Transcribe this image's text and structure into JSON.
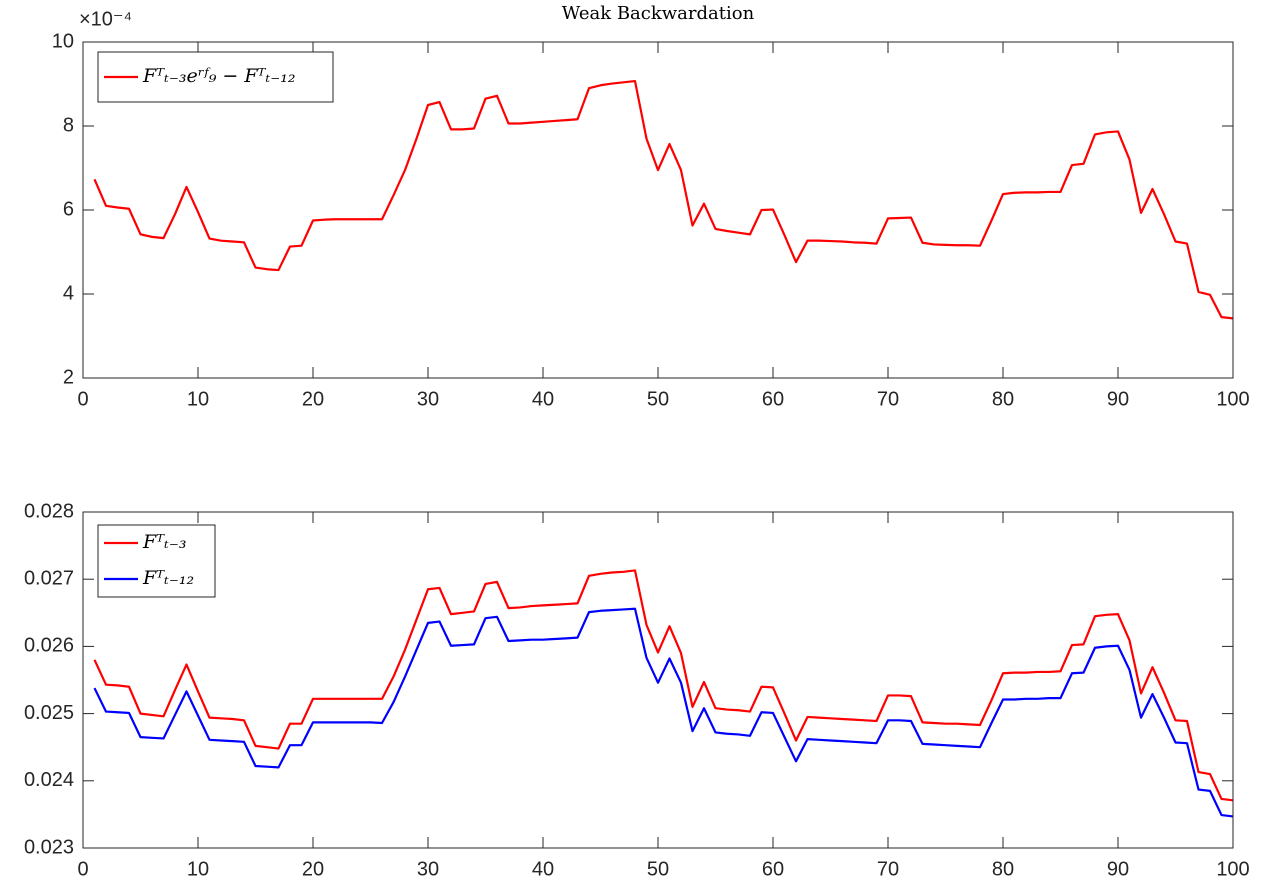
{
  "chart_data": [
    {
      "type": "line",
      "title": "Weak Backwardation",
      "y_scale_label": "×10⁻⁴",
      "x": [
        1,
        2,
        3,
        4,
        5,
        6,
        7,
        8,
        9,
        10,
        11,
        12,
        13,
        14,
        15,
        16,
        17,
        18,
        19,
        20,
        21,
        22,
        23,
        24,
        25,
        26,
        27,
        28,
        29,
        30,
        31,
        32,
        33,
        34,
        35,
        36,
        37,
        38,
        39,
        40,
        41,
        42,
        43,
        44,
        45,
        46,
        47,
        48,
        49,
        50,
        51,
        52,
        53,
        54,
        55,
        56,
        57,
        58,
        59,
        60,
        61,
        62,
        63,
        64,
        65,
        66,
        67,
        68,
        69,
        70,
        71,
        72,
        73,
        74,
        75,
        76,
        77,
        78,
        79,
        80,
        81,
        82,
        83,
        84,
        85,
        86,
        87,
        88,
        89,
        90,
        91,
        92,
        93,
        94,
        95,
        96,
        97,
        98,
        99,
        100
      ],
      "series": [
        {
          "name": "Fᵀₜ₋₃eʳᶠ₉ − Fᵀₜ₋₁₂",
          "color": "#ff0000",
          "values": [
            6.73,
            6.1,
            6.06,
            6.03,
            5.42,
            5.36,
            5.33,
            5.9,
            6.55,
            5.95,
            5.32,
            5.27,
            5.25,
            5.23,
            4.63,
            4.59,
            4.57,
            5.13,
            5.15,
            5.75,
            5.77,
            5.78,
            5.78,
            5.78,
            5.78,
            5.78,
            6.35,
            6.95,
            7.7,
            8.5,
            8.57,
            7.92,
            7.92,
            7.94,
            8.65,
            8.72,
            8.06,
            8.06,
            8.08,
            8.1,
            8.12,
            8.14,
            8.16,
            8.9,
            8.97,
            9.01,
            9.04,
            9.07,
            7.7,
            6.95,
            7.57,
            6.95,
            5.63,
            6.15,
            5.55,
            5.5,
            5.46,
            5.42,
            6.0,
            6.01,
            5.4,
            4.76,
            5.27,
            5.27,
            5.26,
            5.25,
            5.23,
            5.22,
            5.2,
            5.8,
            5.81,
            5.82,
            5.22,
            5.18,
            5.17,
            5.16,
            5.16,
            5.15,
            5.75,
            6.38,
            6.41,
            6.42,
            6.42,
            6.43,
            6.43,
            7.07,
            7.1,
            7.8,
            7.85,
            7.87,
            7.2,
            5.93,
            6.5,
            5.9,
            5.25,
            5.2,
            4.05,
            3.98,
            3.45,
            3.42
          ]
        }
      ],
      "xlim": [
        0,
        100
      ],
      "xticks": [
        0,
        10,
        20,
        30,
        40,
        50,
        60,
        70,
        80,
        90,
        100
      ],
      "ylim": [
        2,
        10
      ],
      "yticks": [
        2,
        4,
        6,
        8,
        10
      ]
    },
    {
      "type": "line",
      "x": [
        1,
        2,
        3,
        4,
        5,
        6,
        7,
        8,
        9,
        10,
        11,
        12,
        13,
        14,
        15,
        16,
        17,
        18,
        19,
        20,
        21,
        22,
        23,
        24,
        25,
        26,
        27,
        28,
        29,
        30,
        31,
        32,
        33,
        34,
        35,
        36,
        37,
        38,
        39,
        40,
        41,
        42,
        43,
        44,
        45,
        46,
        47,
        48,
        49,
        50,
        51,
        52,
        53,
        54,
        55,
        56,
        57,
        58,
        59,
        60,
        61,
        62,
        63,
        64,
        65,
        66,
        67,
        68,
        69,
        70,
        71,
        72,
        73,
        74,
        75,
        76,
        77,
        78,
        79,
        80,
        81,
        82,
        83,
        84,
        85,
        86,
        87,
        88,
        89,
        90,
        91,
        92,
        93,
        94,
        95,
        96,
        97,
        98,
        99,
        100
      ],
      "series": [
        {
          "name": "Fᵀₜ₋₃",
          "color": "#ff0000",
          "values": [
            0.0258,
            0.02543,
            0.02542,
            0.0254,
            0.025,
            0.02498,
            0.02496,
            0.02535,
            0.02573,
            0.02533,
            0.02494,
            0.02493,
            0.02492,
            0.0249,
            0.02452,
            0.0245,
            0.02448,
            0.02485,
            0.02485,
            0.02522,
            0.02522,
            0.02522,
            0.02522,
            0.02522,
            0.02522,
            0.02522,
            0.02555,
            0.02595,
            0.0264,
            0.02685,
            0.02687,
            0.02648,
            0.0265,
            0.02652,
            0.02693,
            0.02696,
            0.02657,
            0.02658,
            0.0266,
            0.02661,
            0.02662,
            0.02663,
            0.02664,
            0.02705,
            0.02708,
            0.0271,
            0.02711,
            0.02713,
            0.02632,
            0.02591,
            0.0263,
            0.0259,
            0.0251,
            0.02547,
            0.02508,
            0.02506,
            0.02505,
            0.02503,
            0.0254,
            0.02539,
            0.025,
            0.0246,
            0.02495,
            0.02494,
            0.02493,
            0.02492,
            0.02491,
            0.0249,
            0.02489,
            0.02527,
            0.02527,
            0.02526,
            0.02487,
            0.02486,
            0.02485,
            0.02485,
            0.02484,
            0.02483,
            0.0252,
            0.0256,
            0.02561,
            0.02561,
            0.02562,
            0.02562,
            0.02563,
            0.02602,
            0.02603,
            0.02645,
            0.02647,
            0.02648,
            0.02609,
            0.0253,
            0.02569,
            0.02531,
            0.0249,
            0.02489,
            0.02413,
            0.0241,
            0.02373,
            0.02371
          ]
        },
        {
          "name": "Fᵀₜ₋₁₂",
          "color": "#0000ff",
          "values": [
            0.02538,
            0.02503,
            0.02502,
            0.02501,
            0.02465,
            0.02464,
            0.02463,
            0.02498,
            0.02533,
            0.02497,
            0.02461,
            0.0246,
            0.02459,
            0.02458,
            0.02422,
            0.02421,
            0.0242,
            0.02453,
            0.02453,
            0.02487,
            0.02487,
            0.02487,
            0.02487,
            0.02487,
            0.02487,
            0.02486,
            0.02517,
            0.02555,
            0.02595,
            0.02635,
            0.02637,
            0.02601,
            0.02602,
            0.02603,
            0.02642,
            0.02644,
            0.02608,
            0.02609,
            0.0261,
            0.0261,
            0.02611,
            0.02612,
            0.02613,
            0.02651,
            0.02653,
            0.02654,
            0.02655,
            0.02656,
            0.02583,
            0.02546,
            0.02582,
            0.02546,
            0.02474,
            0.02508,
            0.02472,
            0.0247,
            0.02469,
            0.02467,
            0.02502,
            0.02501,
            0.02465,
            0.02429,
            0.02462,
            0.02461,
            0.0246,
            0.02459,
            0.02458,
            0.02457,
            0.02456,
            0.0249,
            0.0249,
            0.02489,
            0.02455,
            0.02454,
            0.02453,
            0.02452,
            0.02451,
            0.0245,
            0.02486,
            0.02521,
            0.02521,
            0.02522,
            0.02522,
            0.02523,
            0.02523,
            0.0256,
            0.02561,
            0.02598,
            0.026,
            0.02601,
            0.02565,
            0.02494,
            0.02529,
            0.02494,
            0.02457,
            0.02456,
            0.02387,
            0.02385,
            0.02349,
            0.02347
          ]
        }
      ],
      "xlim": [
        0,
        100
      ],
      "xticks": [
        0,
        10,
        20,
        30,
        40,
        50,
        60,
        70,
        80,
        90,
        100
      ],
      "ylim": [
        0.023,
        0.028
      ],
      "yticks": [
        0.023,
        0.024,
        0.025,
        0.026,
        0.027,
        0.028
      ]
    }
  ]
}
